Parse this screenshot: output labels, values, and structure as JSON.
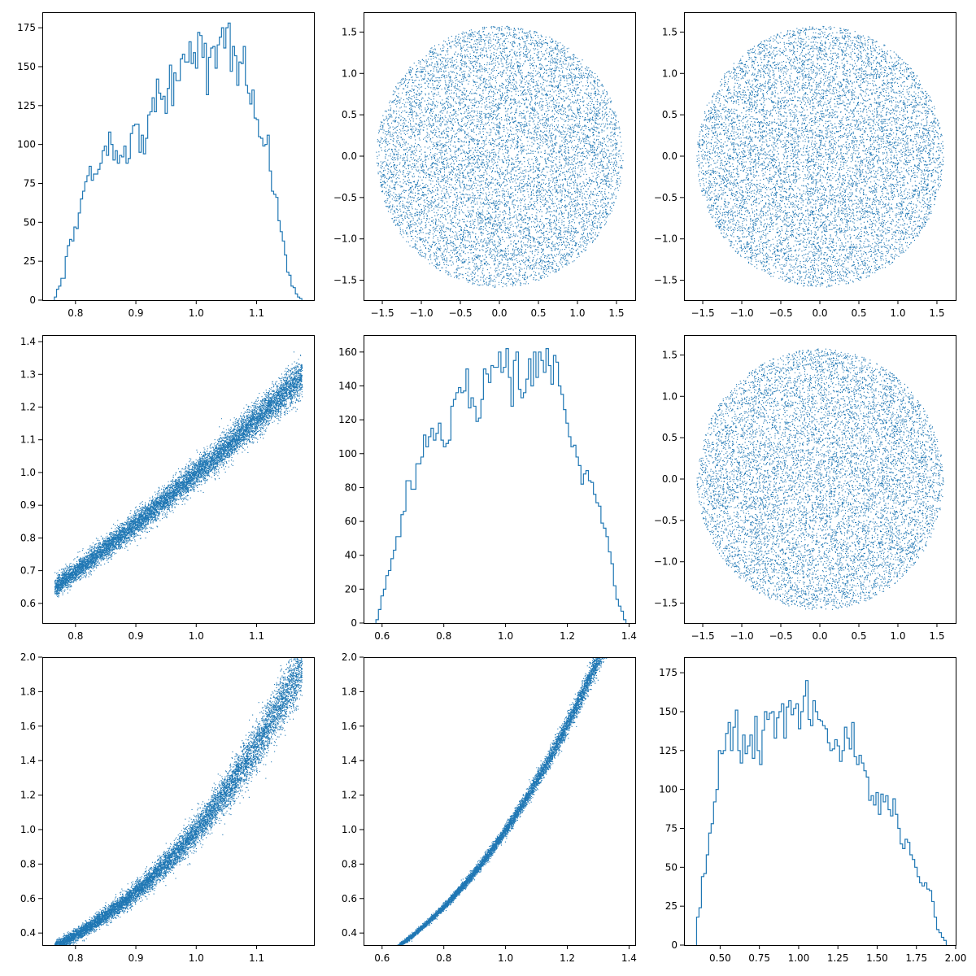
{
  "accent_color": "#1f77b4",
  "chart_data": [
    {
      "type": "histogram",
      "position": "row 1, column 1",
      "xlim": [
        0.745,
        1.195
      ],
      "ylim": [
        0,
        185
      ],
      "xticks": [
        0.8,
        0.9,
        1.0,
        1.1
      ],
      "xtick_labels": [
        "0.8",
        "0.9",
        "1.0",
        "1.1"
      ],
      "yticks": [
        0,
        25,
        50,
        75,
        100,
        125,
        150,
        175
      ],
      "ytick_labels": [
        "0",
        "25",
        "50",
        "75",
        "100",
        "125",
        "150",
        "175"
      ],
      "bin_range": [
        0.765,
        1.175
      ],
      "counts": [
        2,
        7,
        9,
        14,
        14,
        28,
        35,
        39,
        38,
        47,
        46,
        56,
        65,
        70,
        76,
        80,
        86,
        77,
        81,
        81,
        84,
        88,
        96,
        99,
        93,
        108,
        100,
        90,
        96,
        88,
        93,
        92,
        99,
        88,
        91,
        107,
        112,
        113,
        113,
        95,
        106,
        94,
        104,
        119,
        121,
        130,
        121,
        142,
        133,
        129,
        131,
        120,
        136,
        151,
        125,
        146,
        141,
        141,
        155,
        158,
        153,
        153,
        166,
        152,
        159,
        149,
        172,
        170,
        156,
        165,
        132,
        156,
        162,
        163,
        149,
        164,
        169,
        175,
        162,
        175,
        178,
        147,
        163,
        157,
        138,
        153,
        152,
        163,
        138,
        133,
        126,
        135,
        117,
        116,
        105,
        104,
        99,
        100,
        106,
        83,
        70,
        68,
        66,
        51,
        44,
        38,
        29,
        18,
        16,
        9,
        8,
        4,
        2,
        1
      ]
    },
    {
      "type": "scatter",
      "position": "row 1, column 2",
      "description_of_points": "about 10000 points uniformly filling a disk of radius 1.58 centred at (0, 0)",
      "center": [
        0.0,
        0.0
      ],
      "radius": 1.58,
      "n_points": 10000,
      "xlim": [
        -1.74,
        1.74
      ],
      "ylim": [
        -1.74,
        1.74
      ],
      "xticks": [
        -1.5,
        -1.0,
        -0.5,
        0.0,
        0.5,
        1.0,
        1.5
      ],
      "xtick_labels": [
        "−1.5",
        "−1.0",
        "−0.5",
        "0.0",
        "0.5",
        "1.0",
        "1.5"
      ],
      "yticks": [
        -1.5,
        -1.0,
        -0.5,
        0.0,
        0.5,
        1.0,
        1.5
      ],
      "ytick_labels": [
        "−1.5",
        "−1.0",
        "−0.5",
        "0.0",
        "0.5",
        "1.0",
        "1.5"
      ]
    },
    {
      "type": "scatter",
      "position": "row 1, column 3",
      "description_of_points": "about 10000 points uniformly filling a disk of radius 1.58 centred at (0, 0)",
      "center": [
        0.0,
        0.0
      ],
      "radius": 1.58,
      "n_points": 10000,
      "xlim": [
        -1.74,
        1.74
      ],
      "ylim": [
        -1.74,
        1.74
      ],
      "xticks": [
        -1.5,
        -1.0,
        -0.5,
        0.0,
        0.5,
        1.0,
        1.5
      ],
      "xtick_labels": [
        "−1.5",
        "−1.0",
        "−0.5",
        "0.0",
        "0.5",
        "1.0",
        "1.5"
      ],
      "yticks": [
        -1.5,
        -1.0,
        -0.5,
        0.0,
        0.5,
        1.0,
        1.5
      ],
      "ytick_labels": [
        "−1.5",
        "−1.0",
        "−0.5",
        "0.0",
        "0.5",
        "1.0",
        "1.5"
      ]
    },
    {
      "type": "scatter",
      "position": "row 2, column 1",
      "description_of_points": "about 10000 points in a narrow band along y = x^1.6, x from 0.765 to 1.175",
      "x_range": [
        0.765,
        1.175
      ],
      "relation": "y = x^1.6",
      "n_points": 10000,
      "xlim": [
        0.745,
        1.195
      ],
      "ylim": [
        0.54,
        1.42
      ],
      "xticks": [
        0.8,
        0.9,
        1.0,
        1.1
      ],
      "xtick_labels": [
        "0.8",
        "0.9",
        "1.0",
        "1.1"
      ],
      "yticks": [
        0.6,
        0.7,
        0.8,
        0.9,
        1.0,
        1.1,
        1.2,
        1.3,
        1.4
      ],
      "ytick_labels": [
        "0.6",
        "0.7",
        "0.8",
        "0.9",
        "1.0",
        "1.1",
        "1.2",
        "1.3",
        "1.4"
      ]
    },
    {
      "type": "histogram",
      "position": "row 2, column 2",
      "xlim": [
        0.54,
        1.42
      ],
      "ylim": [
        0,
        170
      ],
      "xticks": [
        0.6,
        0.8,
        1.0,
        1.2,
        1.4
      ],
      "xtick_labels": [
        "0.6",
        "0.8",
        "1.0",
        "1.2",
        "1.4"
      ],
      "yticks": [
        0,
        20,
        40,
        60,
        80,
        100,
        120,
        140,
        160
      ],
      "ytick_labels": [
        "0",
        "20",
        "40",
        "60",
        "80",
        "100",
        "120",
        "140",
        "160"
      ],
      "bin_range": [
        0.58,
        1.39
      ],
      "counts": [
        2,
        8,
        16,
        20,
        28,
        31,
        38,
        43,
        51,
        51,
        64,
        66,
        84,
        84,
        79,
        79,
        94,
        94,
        98,
        111,
        104,
        110,
        115,
        108,
        112,
        118,
        108,
        104,
        106,
        108,
        128,
        132,
        136,
        139,
        136,
        137,
        150,
        127,
        133,
        128,
        119,
        121,
        132,
        150,
        147,
        142,
        152,
        151,
        151,
        160,
        148,
        151,
        162,
        145,
        128,
        155,
        160,
        138,
        133,
        136,
        144,
        156,
        140,
        160,
        145,
        160,
        155,
        148,
        162,
        152,
        141,
        158,
        154,
        140,
        135,
        126,
        118,
        110,
        104,
        105,
        98,
        93,
        82,
        88,
        90,
        84,
        83,
        76,
        71,
        69,
        59,
        56,
        51,
        42,
        35,
        22,
        14,
        10,
        7,
        2
      ]
    },
    {
      "type": "scatter",
      "position": "row 2, column 3",
      "description_of_points": "about 10000 points uniformly filling a disk of radius 1.58 centred at (0, 0)",
      "center": [
        0.0,
        0.0
      ],
      "radius": 1.58,
      "n_points": 10000,
      "xlim": [
        -1.74,
        1.74
      ],
      "ylim": [
        -1.74,
        1.74
      ],
      "xticks": [
        -1.5,
        -1.0,
        -0.5,
        0.0,
        0.5,
        1.0,
        1.5
      ],
      "xtick_labels": [
        "−1.5",
        "−1.0",
        "−0.5",
        "0.0",
        "0.5",
        "1.0",
        "1.5"
      ],
      "yticks": [
        -1.5,
        -1.0,
        -0.5,
        0.0,
        0.5,
        1.0,
        1.5
      ],
      "ytick_labels": [
        "−1.5",
        "−1.0",
        "−0.5",
        "0.0",
        "0.5",
        "1.0",
        "1.5"
      ]
    },
    {
      "type": "scatter",
      "position": "row 3, column 1",
      "description_of_points": "about 10000 points in a band along y = x^4.2, widening to the right, x from 0.765 to 1.175",
      "x_range": [
        0.765,
        1.175
      ],
      "relation": "y = x^4.2",
      "n_points": 10000,
      "xlim": [
        0.745,
        1.195
      ],
      "ylim": [
        0.33,
        2.0
      ],
      "xticks": [
        0.8,
        0.9,
        1.0,
        1.1
      ],
      "xtick_labels": [
        "0.8",
        "0.9",
        "1.0",
        "1.1"
      ],
      "yticks": [
        0.4,
        0.6,
        0.8,
        1.0,
        1.2,
        1.4,
        1.6,
        1.8,
        2.0
      ],
      "ytick_labels": [
        "0.4",
        "0.6",
        "0.8",
        "1.0",
        "1.2",
        "1.4",
        "1.6",
        "1.8",
        "2.0"
      ]
    },
    {
      "type": "scatter",
      "position": "row 3, column 2",
      "description_of_points": "about 10000 points in a thin band along y = x^2.63, x from 0.58 to 1.39",
      "x_range": [
        0.58,
        1.39
      ],
      "relation": "y = x^2.63",
      "n_points": 10000,
      "xlim": [
        0.54,
        1.42
      ],
      "ylim": [
        0.33,
        2.0
      ],
      "xticks": [
        0.6,
        0.8,
        1.0,
        1.2,
        1.4
      ],
      "xtick_labels": [
        "0.6",
        "0.8",
        "1.0",
        "1.2",
        "1.4"
      ],
      "yticks": [
        0.4,
        0.6,
        0.8,
        1.0,
        1.2,
        1.4,
        1.6,
        1.8,
        2.0
      ],
      "ytick_labels": [
        "0.4",
        "0.6",
        "0.8",
        "1.0",
        "1.2",
        "1.4",
        "1.6",
        "1.8",
        "2.0"
      ]
    },
    {
      "type": "histogram",
      "position": "row 3, column 3",
      "xlim": [
        0.27,
        2.0
      ],
      "ylim": [
        0,
        185
      ],
      "xticks": [
        0.5,
        0.75,
        1.0,
        1.25,
        1.5,
        1.75,
        2.0
      ],
      "xtick_labels": [
        "0.50",
        "0.75",
        "1.00",
        "1.25",
        "1.50",
        "1.75",
        "2.00"
      ],
      "yticks": [
        0,
        25,
        50,
        75,
        100,
        125,
        150,
        175
      ],
      "ytick_labels": [
        "0",
        "25",
        "50",
        "75",
        "100",
        "125",
        "150",
        "175"
      ],
      "bin_range": [
        0.35,
        1.94
      ],
      "counts": [
        18,
        24,
        44,
        46,
        58,
        72,
        78,
        92,
        100,
        125,
        123,
        125,
        136,
        143,
        125,
        140,
        151,
        125,
        117,
        135,
        123,
        128,
        135,
        120,
        147,
        125,
        116,
        138,
        150,
        145,
        149,
        150,
        133,
        146,
        150,
        155,
        133,
        153,
        157,
        148,
        152,
        155,
        139,
        150,
        160,
        170,
        145,
        141,
        157,
        150,
        145,
        144,
        141,
        139,
        130,
        125,
        126,
        132,
        128,
        118,
        125,
        140,
        133,
        126,
        143,
        121,
        116,
        122,
        117,
        112,
        108,
        93,
        96,
        90,
        98,
        84,
        97,
        92,
        96,
        87,
        83,
        94,
        84,
        75,
        65,
        62,
        68,
        66,
        58,
        55,
        50,
        44,
        40,
        38,
        40,
        36,
        35,
        28,
        18,
        10,
        8,
        5,
        3
      ]
    }
  ]
}
